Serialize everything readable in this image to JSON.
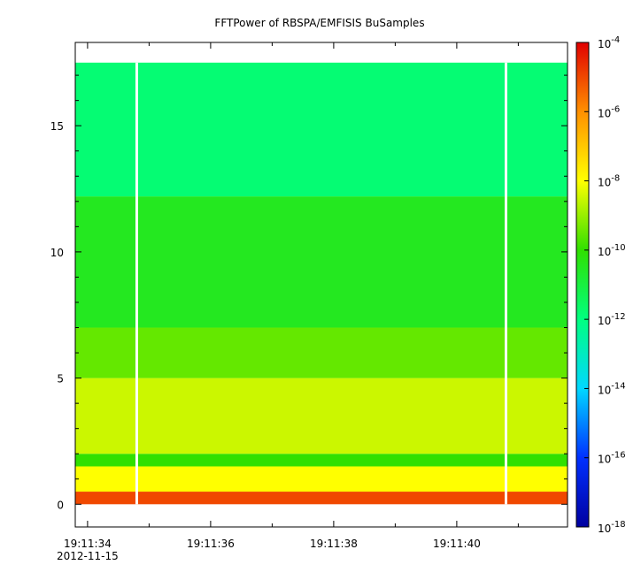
{
  "chart_data": {
    "type": "heatmap",
    "title": "FFTPower of RBSPA/EMFISIS  BuSamples",
    "xlabel": "",
    "ylabel": "",
    "x_ticks": [
      {
        "t": 0.0,
        "label": "19:11:34"
      },
      {
        "t": 2.0,
        "label": "19:11:36"
      },
      {
        "t": 4.0,
        "label": "19:11:38"
      },
      {
        "t": 6.0,
        "label": "19:11:40"
      }
    ],
    "x_date_label": "2012-11-15",
    "x_minor_ticks": [
      1.0,
      3.0,
      5.0,
      7.0
    ],
    "xlim": [
      "19:11:33.8",
      "19:11:41.8"
    ],
    "y_ticks": [
      0,
      5,
      10,
      15
    ],
    "ylim": [
      -0.9,
      18.3
    ],
    "data_y_range": [
      0,
      17.5
    ],
    "data_gaps_x": [
      "19:11:34.8",
      "19:11:40.8"
    ],
    "colorbar": {
      "scale": "log",
      "range": [
        1e-18,
        0.0001
      ],
      "tick_labels": [
        {
          "base": "10",
          "exp": "-4"
        },
        {
          "base": "10",
          "exp": "-6"
        },
        {
          "base": "10",
          "exp": "-8"
        },
        {
          "base": "10",
          "exp": "-10"
        },
        {
          "base": "10",
          "exp": "-12"
        },
        {
          "base": "10",
          "exp": "-14"
        },
        {
          "base": "10",
          "exp": "-16"
        },
        {
          "base": "10",
          "exp": "-18"
        }
      ],
      "colors": [
        "#0000a0",
        "#0030ff",
        "#00d8ff",
        "#00ff80",
        "#30e000",
        "#ffff00",
        "#ff9000",
        "#e00000"
      ]
    },
    "bands": [
      {
        "y": [
          0.0,
          0.5
        ],
        "level": "-5"
      },
      {
        "y": [
          0.5,
          1.5
        ],
        "level": "-8"
      },
      {
        "y": [
          1.5,
          2.0
        ],
        "level": "-10"
      },
      {
        "y": [
          2.0,
          5.0
        ],
        "level": "-8.5"
      },
      {
        "y": [
          5.0,
          7.0
        ],
        "level": "-9.5"
      },
      {
        "y": [
          7.0,
          12.2
        ],
        "level": "-10.5"
      },
      {
        "y": [
          12.2,
          17.5
        ],
        "level": "-11.8"
      }
    ]
  }
}
